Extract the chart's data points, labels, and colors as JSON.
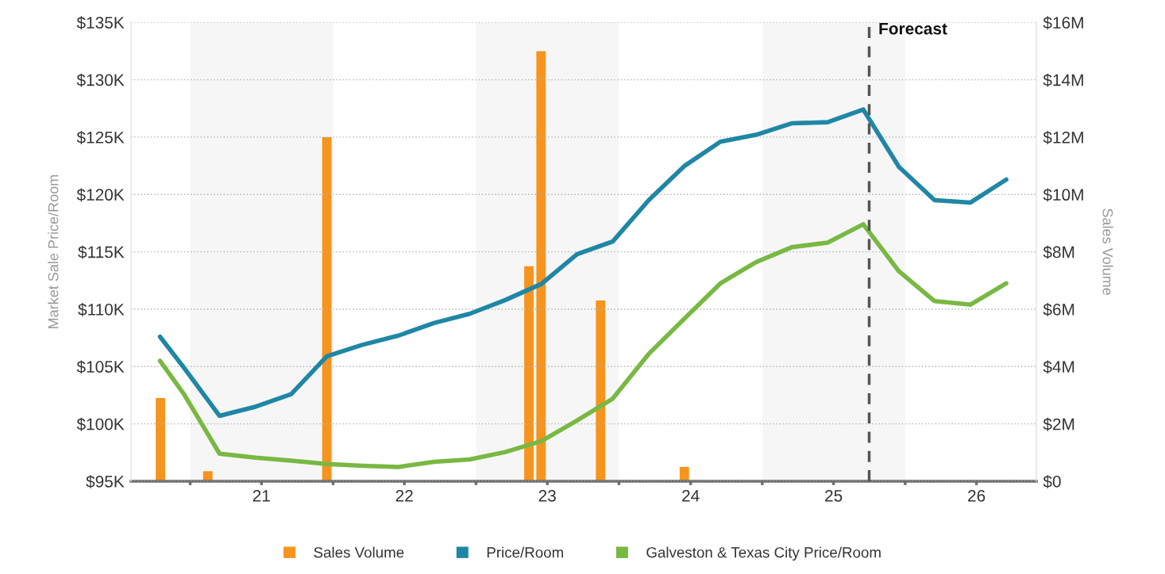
{
  "chart_data": {
    "type": "line",
    "ylabel": "Market Sale Price/Room",
    "y2label": "Sales Volume",
    "series": [
      {
        "name": "Sales Volume",
        "type": "bar",
        "axis": "y2",
        "color": "#f7941d",
        "x": [
          "2020-10-17",
          "2021-02-15",
          "2021-12-16",
          "2023-05-16",
          "2023-06-16",
          "2023-11-15",
          "2024-06-16"
        ],
        "values": [
          2.9,
          0.35,
          12.0,
          7.5,
          15.0,
          6.3,
          0.5
        ]
      },
      {
        "name": "Price/Room",
        "color": "#1f87a5",
        "x": [
          "2020-10-16",
          "2020-12-16",
          "2021-03-17",
          "2021-06-17",
          "2021-09-16",
          "2021-12-16",
          "2022-03-17",
          "2022-06-17",
          "2022-09-16",
          "2022-12-16",
          "2023-03-17",
          "2023-06-17",
          "2023-09-16",
          "2023-12-16",
          "2024-03-17",
          "2024-06-17",
          "2024-09-16",
          "2024-12-16",
          "2025-03-17",
          "2025-06-17",
          "2025-09-16",
          "2025-12-16",
          "2026-03-17",
          "2026-06-17",
          "2026-09-16"
        ],
        "values": [
          107.6,
          104.9,
          100.7,
          101.5,
          102.6,
          105.9,
          106.9,
          107.7,
          108.8,
          109.6,
          110.8,
          112.2,
          114.8,
          115.9,
          119.5,
          122.5,
          124.6,
          125.2,
          126.2,
          126.3,
          127.4,
          122.4,
          119.5,
          119.3,
          121.3
        ]
      },
      {
        "name": "Galveston & Texas City Price/Room",
        "color": "#78b843",
        "x": [
          "2020-10-16",
          "2020-12-16",
          "2021-03-17",
          "2021-06-17",
          "2021-09-16",
          "2021-12-16",
          "2022-03-17",
          "2022-06-17",
          "2022-09-16",
          "2022-12-16",
          "2023-03-17",
          "2023-06-17",
          "2023-09-16",
          "2023-12-16",
          "2024-03-17",
          "2024-06-17",
          "2024-09-16",
          "2024-12-16",
          "2025-03-17",
          "2025-06-17",
          "2025-09-16",
          "2025-12-16",
          "2026-03-17",
          "2026-06-17",
          "2026-09-16"
        ],
        "values": [
          105.5,
          102.6,
          97.4,
          97.05,
          96.8,
          96.5,
          96.35,
          96.25,
          96.7,
          96.9,
          97.55,
          98.5,
          100.3,
          102.2,
          106.1,
          109.2,
          112.25,
          114.1,
          115.4,
          115.8,
          117.4,
          113.3,
          110.7,
          110.4,
          112.25
        ]
      }
    ],
    "xlim": [
      "2020-08-03",
      "2026-12-02"
    ],
    "xticks": [
      {
        "value": "2021-01-01",
        "label": null
      },
      {
        "value": "2021-07-02",
        "label": "21"
      },
      {
        "value": "2022-01-01",
        "label": null
      },
      {
        "value": "2022-07-02",
        "label": "22"
      },
      {
        "value": "2023-01-01",
        "label": null
      },
      {
        "value": "2023-07-02",
        "label": "23"
      },
      {
        "value": "2024-01-01",
        "label": null
      },
      {
        "value": "2024-07-02",
        "label": "24"
      },
      {
        "value": "2025-01-01",
        "label": null
      },
      {
        "value": "2025-07-02",
        "label": "25"
      },
      {
        "value": "2026-01-01",
        "label": null
      },
      {
        "value": "2026-07-02",
        "label": "26"
      }
    ],
    "ylim": [
      95,
      135
    ],
    "yticks": [
      {
        "value": 95,
        "label": "$95K"
      },
      {
        "value": 100,
        "label": "$100K"
      },
      {
        "value": 105,
        "label": "$105K"
      },
      {
        "value": 110,
        "label": "$110K"
      },
      {
        "value": 115,
        "label": "$115K"
      },
      {
        "value": 120,
        "label": "$120K"
      },
      {
        "value": 125,
        "label": "$125K"
      },
      {
        "value": 130,
        "label": "$130K"
      },
      {
        "value": 135,
        "label": "$135K"
      }
    ],
    "y2lim": [
      0,
      16
    ],
    "y2ticks": [
      {
        "value": 0,
        "label": "$0"
      },
      {
        "value": 2,
        "label": "$2M"
      },
      {
        "value": 4,
        "label": "$4M"
      },
      {
        "value": 6,
        "label": "$6M"
      },
      {
        "value": 8,
        "label": "$8M"
      },
      {
        "value": 10,
        "label": "$10M"
      },
      {
        "value": 12,
        "label": "$12M"
      },
      {
        "value": 14,
        "label": "$14M"
      },
      {
        "value": 16,
        "label": "$16M"
      }
    ],
    "ref_lines": [
      {
        "axis": "x",
        "value": "2025-10-01",
        "label": "Forecast",
        "color": "#555555",
        "line_style": "dashed"
      }
    ],
    "bands": [
      {
        "axis": "x",
        "from": "2021-01-01",
        "to": "2022-01-01",
        "color": "#f6f6f6"
      },
      {
        "axis": "x",
        "from": "2023-01-01",
        "to": "2024-01-01",
        "color": "#f6f6f6"
      },
      {
        "axis": "x",
        "from": "2025-01-01",
        "to": "2026-01-01",
        "color": "#f6f6f6"
      }
    ],
    "grid": "y",
    "legend": "bottom",
    "marker": "none",
    "line_style": "solid"
  }
}
